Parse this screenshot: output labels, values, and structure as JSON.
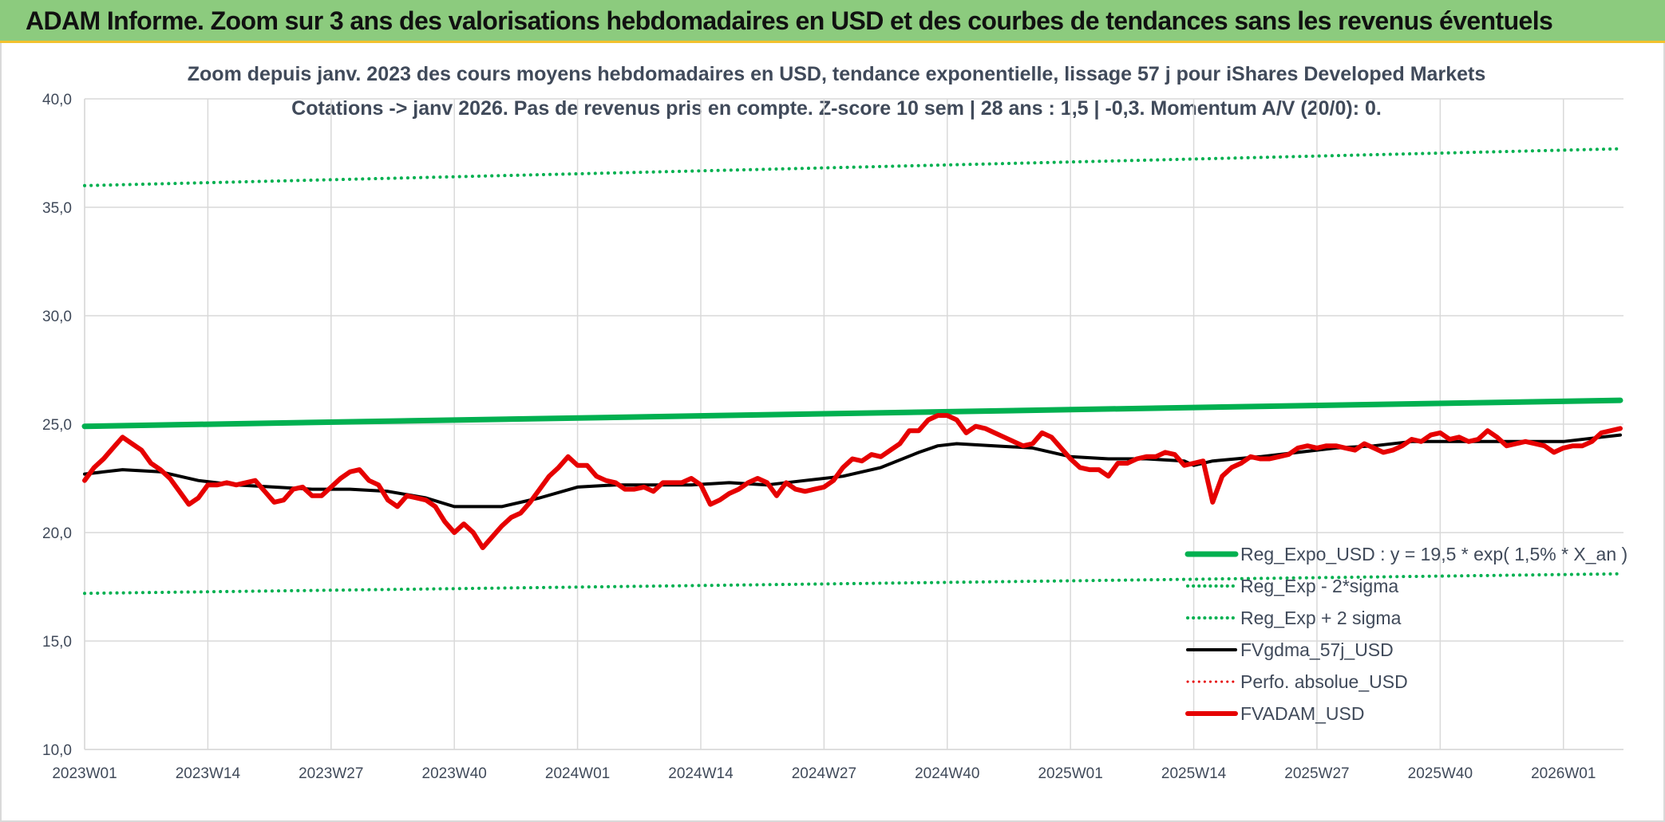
{
  "header": {
    "title": "ADAM Informe. Zoom sur 3 ans des valorisations hebdomadaires en USD et des courbes de tendances sans les revenus éventuels"
  },
  "chart_data": {
    "type": "line",
    "title_lines": [
      "Zoom depuis janv. 2023 des cours moyens hebdomadaires en USD, tendance exponentielle, lissage 57 j pour iShares Developed Markets",
      "Cotations -> janv 2026. Pas de revenus pris en compte. Z-score 10 sem | 28 ans : 1,5 | -0,3. Momentum A/V (20/0): 0."
    ],
    "xlabel": "",
    "ylabel": "",
    "x_ticks": [
      "2023W01",
      "2023W14",
      "2023W27",
      "2023W40",
      "2024W01",
      "2024W14",
      "2024W27",
      "2024W40",
      "2025W01",
      "2025W14",
      "2025W27",
      "2025W40",
      "2026W01"
    ],
    "x_range_weeks": [
      0,
      162
    ],
    "y_ticks": [
      "10,0",
      "15,0",
      "20,0",
      "25,0",
      "30,0",
      "35,0",
      "40,0"
    ],
    "ylim": [
      10,
      40
    ],
    "grid": true,
    "legend_position": "bottom-right",
    "colors": {
      "green": "#00b050",
      "red": "#e60000",
      "black": "#000000",
      "grid": "#d9d9d9",
      "text": "#404a5a",
      "header_bg": "#8ccb7e"
    },
    "series": [
      {
        "name": "Reg_Expo_USD : y = 19,5 * exp( 1,5% *  X_an )",
        "color": "#00b050",
        "style": "solid",
        "width": 7,
        "x": [
          0,
          162
        ],
        "y": [
          24.9,
          26.1
        ]
      },
      {
        "name": "Reg_Exp - 2*sigma",
        "color": "#00b050",
        "style": "dotted",
        "width": 4,
        "x": [
          0,
          162
        ],
        "y": [
          17.2,
          18.1
        ]
      },
      {
        "name": "Reg_Exp + 2 sigma",
        "color": "#00b050",
        "style": "dotted",
        "width": 4,
        "x": [
          0,
          162
        ],
        "y": [
          36.0,
          37.7
        ]
      },
      {
        "name": "FVgdma_57j_USD",
        "color": "#000000",
        "style": "solid",
        "width": 4,
        "x": [
          0,
          4,
          8,
          12,
          16,
          20,
          24,
          28,
          32,
          36,
          39,
          41,
          44,
          48,
          52,
          56,
          60,
          64,
          68,
          72,
          76,
          80,
          84,
          88,
          90,
          92,
          96,
          100,
          104,
          108,
          112,
          116,
          117,
          119,
          124,
          128,
          132,
          136,
          140,
          144,
          148,
          152,
          156,
          160,
          162
        ],
        "y": [
          22.7,
          22.9,
          22.8,
          22.4,
          22.2,
          22.1,
          22.0,
          22.0,
          21.9,
          21.6,
          21.2,
          21.2,
          21.2,
          21.6,
          22.1,
          22.2,
          22.2,
          22.2,
          22.3,
          22.2,
          22.4,
          22.6,
          23.0,
          23.7,
          24.0,
          24.1,
          24.0,
          23.9,
          23.5,
          23.4,
          23.4,
          23.3,
          23.1,
          23.3,
          23.5,
          23.7,
          23.9,
          24.0,
          24.2,
          24.2,
          24.2,
          24.2,
          24.2,
          24.4,
          24.5
        ]
      },
      {
        "name": "Perfo. absolue_USD",
        "color": "#e60000",
        "style": "dotted",
        "width": 3,
        "x": [],
        "y": []
      },
      {
        "name": "FVADAM_USD",
        "color": "#e60000",
        "style": "solid",
        "width": 6,
        "x": [
          0,
          1,
          2,
          3,
          4,
          5,
          6,
          7,
          8,
          9,
          10,
          11,
          12,
          13,
          14,
          15,
          16,
          17,
          18,
          19,
          20,
          21,
          22,
          23,
          24,
          25,
          26,
          27,
          28,
          29,
          30,
          31,
          32,
          33,
          34,
          35,
          36,
          37,
          38,
          39,
          40,
          41,
          42,
          43,
          44,
          45,
          46,
          47,
          48,
          49,
          50,
          51,
          52,
          53,
          54,
          55,
          56,
          57,
          58,
          59,
          60,
          61,
          62,
          63,
          64,
          65,
          66,
          67,
          68,
          69,
          70,
          71,
          72,
          73,
          74,
          75,
          76,
          77,
          78,
          79,
          80,
          81,
          82,
          83,
          84,
          85,
          86,
          87,
          88,
          89,
          90,
          91,
          92,
          93,
          94,
          95,
          96,
          97,
          98,
          99,
          100,
          101,
          102,
          103,
          104,
          105,
          106,
          107,
          108,
          109,
          110,
          111,
          112,
          113,
          114,
          115,
          116,
          117,
          118,
          119,
          120,
          121,
          122,
          123,
          124,
          125,
          126,
          127,
          128,
          129,
          130,
          131,
          132,
          133,
          134,
          135,
          136,
          137,
          138,
          139,
          140,
          141,
          142,
          143,
          144,
          145,
          146,
          147,
          148,
          149,
          150,
          151,
          152,
          153,
          154,
          155,
          156,
          157,
          158,
          159,
          160,
          161,
          162
        ],
        "y": [
          22.4,
          23.0,
          23.4,
          23.9,
          24.4,
          24.1,
          23.8,
          23.2,
          22.9,
          22.5,
          21.9,
          21.3,
          21.6,
          22.2,
          22.2,
          22.3,
          22.2,
          22.3,
          22.4,
          21.9,
          21.4,
          21.5,
          22.0,
          22.1,
          21.7,
          21.7,
          22.1,
          22.5,
          22.8,
          22.9,
          22.4,
          22.2,
          21.5,
          21.2,
          21.7,
          21.6,
          21.5,
          21.2,
          20.5,
          20.0,
          20.4,
          20.0,
          19.3,
          19.8,
          20.3,
          20.7,
          20.9,
          21.4,
          22.0,
          22.6,
          23.0,
          23.5,
          23.1,
          23.1,
          22.6,
          22.4,
          22.3,
          22.0,
          22.0,
          22.1,
          21.9,
          22.3,
          22.3,
          22.3,
          22.5,
          22.2,
          21.3,
          21.5,
          21.8,
          22.0,
          22.3,
          22.5,
          22.3,
          21.7,
          22.3,
          22.0,
          21.9,
          22.0,
          22.1,
          22.4,
          23.0,
          23.4,
          23.3,
          23.6,
          23.5,
          23.8,
          24.1,
          24.7,
          24.7,
          25.2,
          25.4,
          25.4,
          25.2,
          24.6,
          24.9,
          24.8,
          24.6,
          24.4,
          24.2,
          24.0,
          24.1,
          24.6,
          24.4,
          23.9,
          23.4,
          23.0,
          22.9,
          22.9,
          22.6,
          23.2,
          23.2,
          23.4,
          23.5,
          23.5,
          23.7,
          23.6,
          23.1,
          23.2,
          23.3,
          21.4,
          22.6,
          23.0,
          23.2,
          23.5,
          23.4,
          23.4,
          23.5,
          23.6,
          23.9,
          24.0,
          23.9,
          24.0,
          24.0,
          23.9,
          23.8,
          24.1,
          23.9,
          23.7,
          23.8,
          24.0,
          24.3,
          24.2,
          24.5,
          24.6,
          24.3,
          24.4,
          24.2,
          24.3,
          24.7,
          24.4,
          24.0,
          24.1,
          24.2,
          24.1,
          24.0,
          23.7,
          23.9,
          24.0,
          24.0,
          24.2,
          24.6,
          24.7,
          24.8
        ]
      }
    ]
  }
}
